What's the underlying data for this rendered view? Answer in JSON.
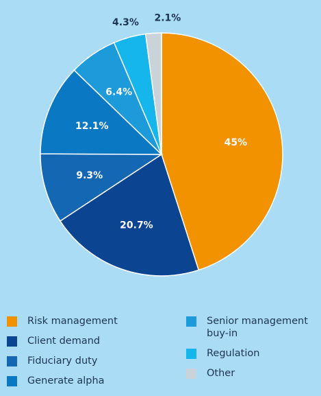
{
  "chart_data": {
    "type": "pie",
    "categories": [
      "Risk management",
      "Client demand",
      "Fiduciary duty",
      "Generate alpha",
      "Senior management buy-in",
      "Regulation",
      "Other"
    ],
    "values": [
      45,
      20.7,
      9.3,
      12.1,
      6.4,
      4.3,
      2.1
    ],
    "value_labels": [
      "45%",
      "20.7%",
      "9.3%",
      "12.1%",
      "6.4%",
      "4.3%",
      "2.1%"
    ],
    "colors": [
      "#f39200",
      "#0b4592",
      "#1467b3",
      "#0b78c4",
      "#1c9ad9",
      "#15b6ec",
      "#c9d3d9"
    ]
  }
}
